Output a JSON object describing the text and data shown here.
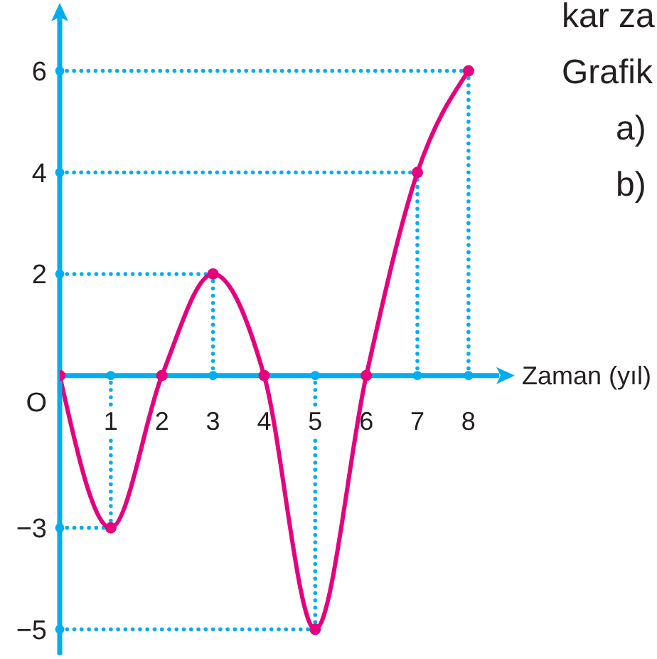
{
  "chart_data": {
    "type": "line",
    "x": [
      0,
      1,
      2,
      3,
      4,
      5,
      6,
      7,
      8
    ],
    "values": [
      0,
      -3,
      0,
      2,
      0,
      -5,
      0,
      4,
      6
    ],
    "color": "#e6007e",
    "marker": "circle",
    "xlabel": "Zaman (yıl)",
    "xlim": [
      0,
      8.6
    ],
    "xticks": [
      1,
      2,
      3,
      4,
      5,
      6,
      7,
      8
    ],
    "ylim": [
      -5.5,
      7.2
    ],
    "yticks": [
      {
        "value": -5,
        "label": "−5"
      },
      {
        "value": -3,
        "label": "−3"
      },
      2,
      4,
      6
    ],
    "annotations": [
      "kar za",
      "Grafik",
      "a)",
      "b)",
      {
        "text": "O",
        "x": 0,
        "y": 0
      }
    ]
  }
}
